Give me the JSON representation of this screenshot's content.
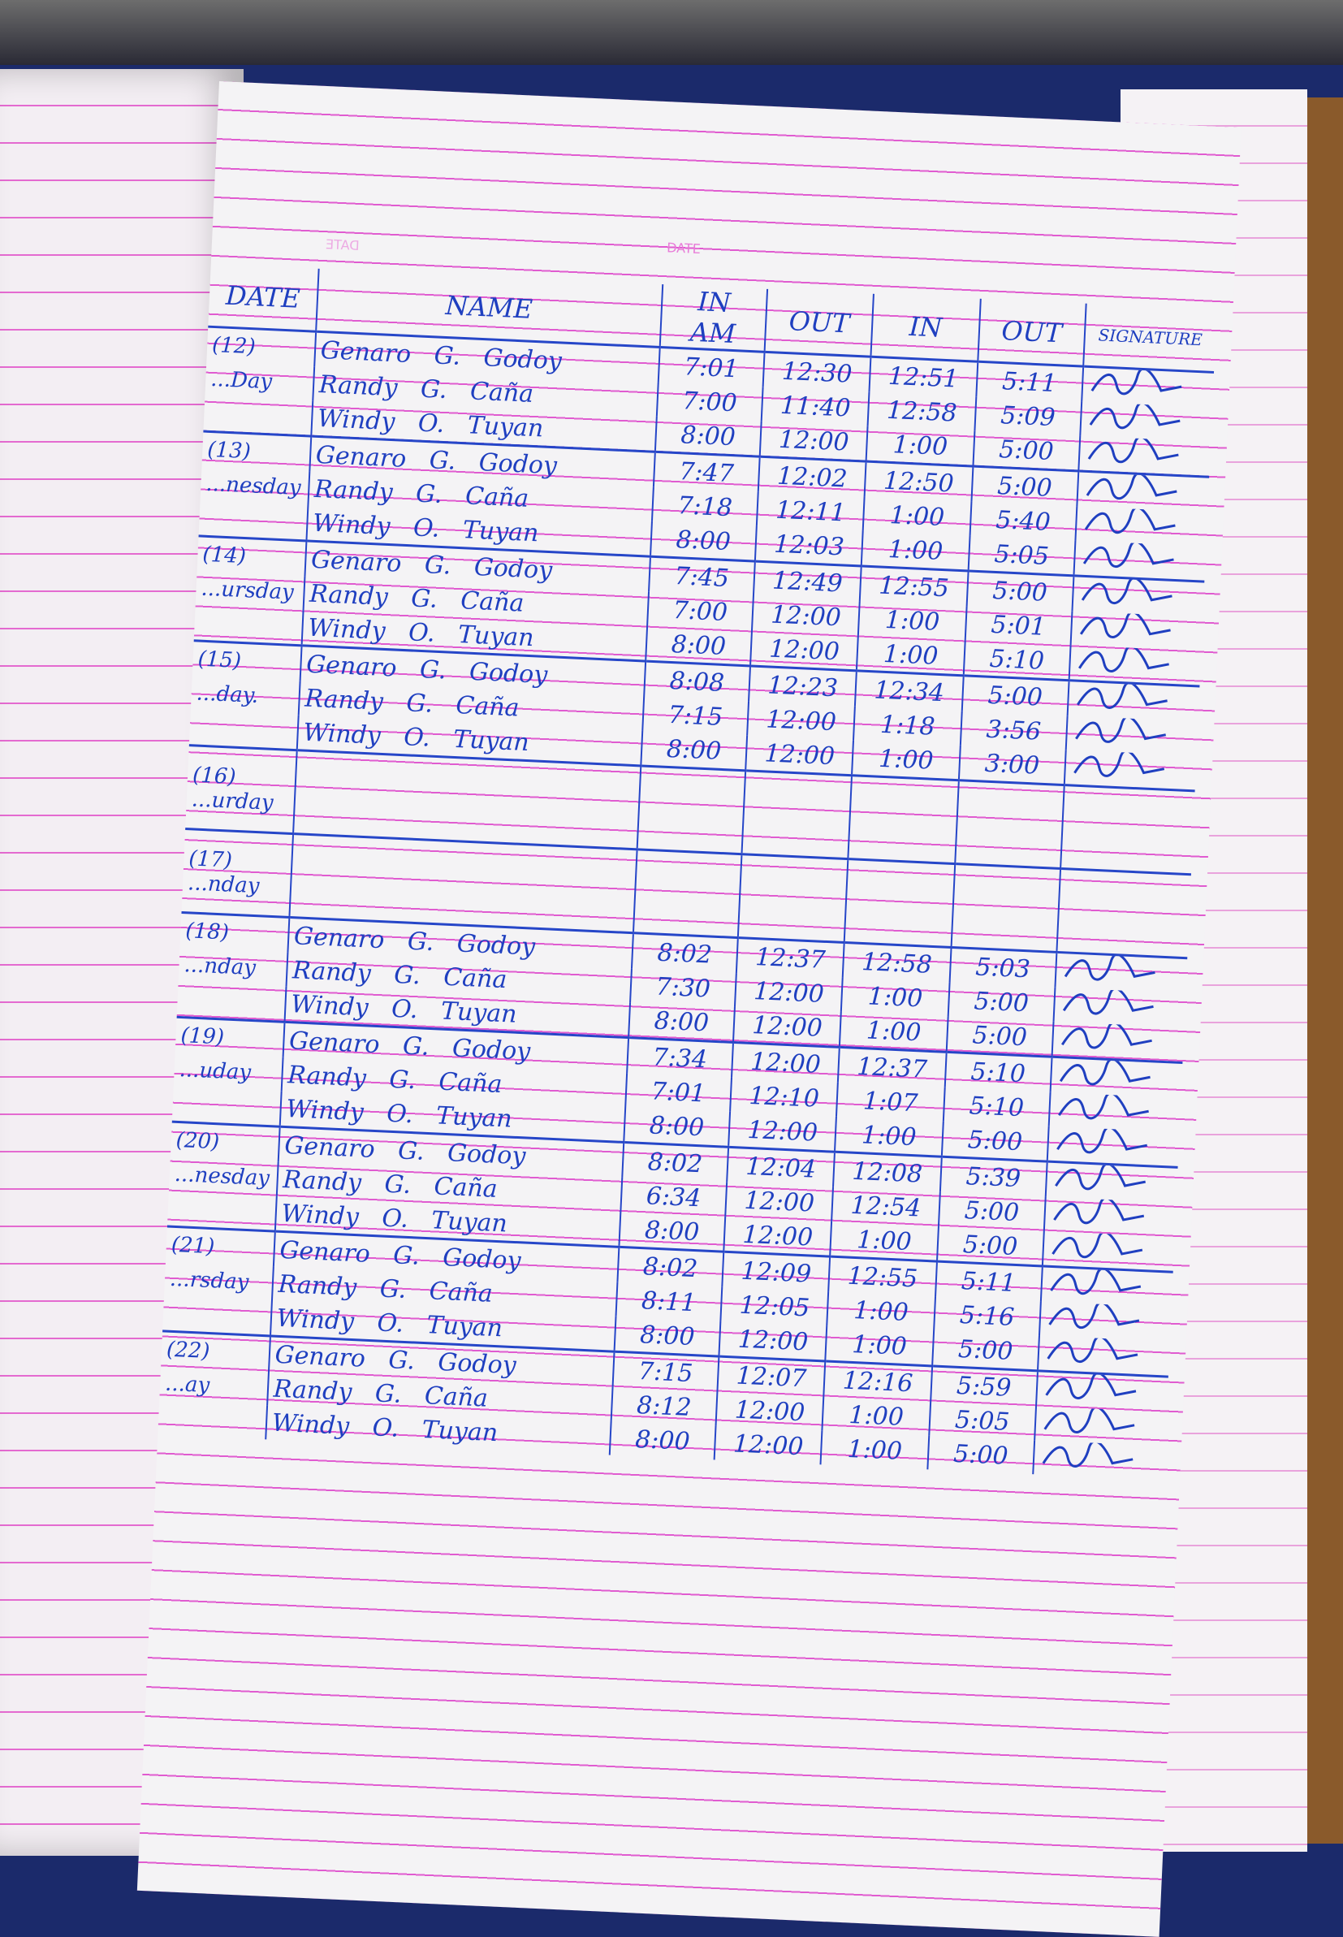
{
  "header": {
    "date_label": "DATE",
    "mirrored_date_label": "DATE"
  },
  "columns": {
    "date": "DATE",
    "name": "NAME",
    "am_in": "IN",
    "am_in_sub": "AM",
    "am_out": "OUT",
    "pm_in": "IN",
    "pm_out": "OUT",
    "signature": "SIGNATURE"
  },
  "days": [
    {
      "date": "(12)",
      "weekday": "...Day",
      "entries": [
        {
          "name": "Genaro",
          "mi": "G.",
          "last": "Godoy",
          "am_in": "7:01",
          "am_out": "12:30",
          "pm_in": "12:51",
          "pm_out": "5:11"
        },
        {
          "name": "Randy",
          "mi": "G.",
          "last": "Caña",
          "am_in": "7:00",
          "am_out": "11:40",
          "pm_in": "12:58",
          "pm_out": "5:09"
        },
        {
          "name": "Windy",
          "mi": "O.",
          "last": "Tuyan",
          "am_in": "8:00",
          "am_out": "12:00",
          "pm_in": "1:00",
          "pm_out": "5:00"
        }
      ]
    },
    {
      "date": "(13)",
      "weekday": "...nesday",
      "entries": [
        {
          "name": "Genaro",
          "mi": "G.",
          "last": "Godoy",
          "am_in": "7:47",
          "am_out": "12:02",
          "pm_in": "12:50",
          "pm_out": "5:00"
        },
        {
          "name": "Randy",
          "mi": "G.",
          "last": "Caña",
          "am_in": "7:18",
          "am_out": "12:11",
          "pm_in": "1:00",
          "pm_out": "5:40"
        },
        {
          "name": "Windy",
          "mi": "O.",
          "last": "Tuyan",
          "am_in": "8:00",
          "am_out": "12:03",
          "pm_in": "1:00",
          "pm_out": "5:05"
        }
      ]
    },
    {
      "date": "(14)",
      "weekday": "...ursday",
      "entries": [
        {
          "name": "Genaro",
          "mi": "G.",
          "last": "Godoy",
          "am_in": "7:45",
          "am_out": "12:49",
          "pm_in": "12:55",
          "pm_out": "5:00"
        },
        {
          "name": "Randy",
          "mi": "G.",
          "last": "Caña",
          "am_in": "7:00",
          "am_out": "12:00",
          "pm_in": "1:00",
          "pm_out": "5:01"
        },
        {
          "name": "Windy",
          "mi": "O.",
          "last": "Tuyan",
          "am_in": "8:00",
          "am_out": "12:00",
          "pm_in": "1:00",
          "pm_out": "5:10"
        }
      ]
    },
    {
      "date": "(15)",
      "weekday": "...day.",
      "entries": [
        {
          "name": "Genaro",
          "mi": "G.",
          "last": "Godoy",
          "am_in": "8:08",
          "am_out": "12:23",
          "pm_in": "12:34",
          "pm_out": "5:00"
        },
        {
          "name": "Randy",
          "mi": "G.",
          "last": "Caña",
          "am_in": "7:15",
          "am_out": "12:00",
          "pm_in": "1:18",
          "pm_out": "3:56"
        },
        {
          "name": "Windy",
          "mi": "O.",
          "last": "Tuyan",
          "am_in": "8:00",
          "am_out": "12:00",
          "pm_in": "1:00",
          "pm_out": "3:00"
        }
      ]
    },
    {
      "date": "(16)",
      "weekday": "...urday",
      "entries": []
    },
    {
      "date": "(17)",
      "weekday": "...nday",
      "entries": []
    },
    {
      "date": "(18)",
      "weekday": "...nday",
      "entries": [
        {
          "name": "Genaro",
          "mi": "G.",
          "last": "Godoy",
          "am_in": "8:02",
          "am_out": "12:37",
          "pm_in": "12:58",
          "pm_out": "5:03"
        },
        {
          "name": "Randy",
          "mi": "G.",
          "last": "Caña",
          "am_in": "7:30",
          "am_out": "12:00",
          "pm_in": "1:00",
          "pm_out": "5:00"
        },
        {
          "name": "Windy",
          "mi": "O.",
          "last": "Tuyan",
          "am_in": "8:00",
          "am_out": "12:00",
          "pm_in": "1:00",
          "pm_out": "5:00"
        }
      ]
    },
    {
      "date": "(19)",
      "weekday": "...uday",
      "entries": [
        {
          "name": "Genaro",
          "mi": "G.",
          "last": "Godoy",
          "am_in": "7:34",
          "am_out": "12:00",
          "pm_in": "12:37",
          "pm_out": "5:10"
        },
        {
          "name": "Randy",
          "mi": "G.",
          "last": "Caña",
          "am_in": "7:01",
          "am_out": "12:10",
          "pm_in": "1:07",
          "pm_out": "5:10"
        },
        {
          "name": "Windy",
          "mi": "O.",
          "last": "Tuyan",
          "am_in": "8:00",
          "am_out": "12:00",
          "pm_in": "1:00",
          "pm_out": "5:00"
        }
      ]
    },
    {
      "date": "(20)",
      "weekday": "...nesday",
      "entries": [
        {
          "name": "Genaro",
          "mi": "G.",
          "last": "Godoy",
          "am_in": "8:02",
          "am_out": "12:04",
          "pm_in": "12:08",
          "pm_out": "5:39"
        },
        {
          "name": "Randy",
          "mi": "G.",
          "last": "Caña",
          "am_in": "6:34",
          "am_out": "12:00",
          "pm_in": "12:54",
          "pm_out": "5:00"
        },
        {
          "name": "Windy",
          "mi": "O.",
          "last": "Tuyan",
          "am_in": "8:00",
          "am_out": "12:00",
          "pm_in": "1:00",
          "pm_out": "5:00"
        }
      ]
    },
    {
      "date": "(21)",
      "weekday": "...rsday",
      "entries": [
        {
          "name": "Genaro",
          "mi": "G.",
          "last": "Godoy",
          "am_in": "8:02",
          "am_out": "12:09",
          "pm_in": "12:55",
          "pm_out": "5:11"
        },
        {
          "name": "Randy",
          "mi": "G.",
          "last": "Caña",
          "am_in": "8:11",
          "am_out": "12:05",
          "pm_in": "1:00",
          "pm_out": "5:16"
        },
        {
          "name": "Windy",
          "mi": "O.",
          "last": "Tuyan",
          "am_in": "8:00",
          "am_out": "12:00",
          "pm_in": "1:00",
          "pm_out": "5:00"
        }
      ]
    },
    {
      "date": "(22)",
      "weekday": "...ay",
      "entries": [
        {
          "name": "Genaro",
          "mi": "G.",
          "last": "Godoy",
          "am_in": "7:15",
          "am_out": "12:07",
          "pm_in": "12:16",
          "pm_out": "5:59"
        },
        {
          "name": "Randy",
          "mi": "G.",
          "last": "Caña",
          "am_in": "8:12",
          "am_out": "12:00",
          "pm_in": "1:00",
          "pm_out": "5:05"
        },
        {
          "name": "Windy",
          "mi": "O.",
          "last": "Tuyan",
          "am_in": "8:00",
          "am_out": "12:00",
          "pm_in": "1:00",
          "pm_out": "5:00"
        }
      ]
    }
  ],
  "colors": {
    "ink": "#1f3fc0",
    "ruling": "#e05bd0",
    "paper": "#f4f3f5"
  }
}
